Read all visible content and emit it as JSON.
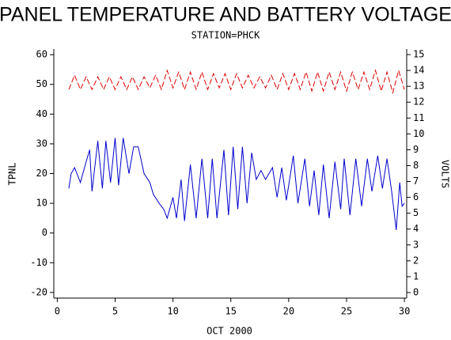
{
  "chart_data": {
    "type": "line",
    "title": "PANEL TEMPERATURE AND BATTERY VOLTAGE",
    "subtitle": "STATION=PHCK",
    "x_label": "OCT 2000",
    "y_label": "TPNL",
    "y2_label": "VOLTS",
    "xlim": [
      -0.3,
      30.2
    ],
    "xticks": [
      0,
      5,
      10,
      15,
      20,
      25,
      30
    ],
    "ylim": [
      -21.9,
      61.9
    ],
    "yticks": [
      -20,
      -10,
      0,
      10,
      20,
      30,
      40,
      50,
      60
    ],
    "y2lim": [
      -0.35,
      15.35
    ],
    "y2ticks": [
      0,
      1,
      2,
      3,
      4,
      5,
      6,
      7,
      8,
      9,
      10,
      11,
      12,
      13,
      14,
      15
    ],
    "series": [
      {
        "name": "TPNL",
        "color": "#0000cc",
        "dash": false,
        "x": [
          1.0,
          1.2,
          1.5,
          2.0,
          2.5,
          2.8,
          3.0,
          3.5,
          3.9,
          4.2,
          4.6,
          5.0,
          5.3,
          5.7,
          6.2,
          6.6,
          7.0,
          7.5,
          8.0,
          8.3,
          8.8,
          9.2,
          9.5,
          10.0,
          10.3,
          10.7,
          11.0,
          11.5,
          12.0,
          12.5,
          13.0,
          13.4,
          13.8,
          14.4,
          14.8,
          15.2,
          15.6,
          16.0,
          16.4,
          16.8,
          17.2,
          17.6,
          18.0,
          18.6,
          19.0,
          19.4,
          19.8,
          20.4,
          20.8,
          21.4,
          21.8,
          22.2,
          22.6,
          23.0,
          23.5,
          24.0,
          24.5,
          24.8,
          25.3,
          25.8,
          26.3,
          26.8,
          27.2,
          27.7,
          28.1,
          28.5,
          28.9,
          29.3,
          29.6,
          29.8,
          30.0
        ],
        "values": [
          15,
          20,
          22,
          17,
          24,
          28,
          14,
          31,
          15,
          31,
          17,
          32,
          16,
          32,
          20,
          29,
          29,
          20,
          17,
          13,
          10,
          8,
          5,
          12,
          5,
          18,
          4,
          23,
          5,
          25,
          5,
          25,
          5,
          28,
          6,
          29,
          8,
          29,
          10,
          27,
          18,
          21,
          18,
          22,
          12,
          22,
          11,
          26,
          10,
          25,
          9,
          21,
          6,
          23,
          5,
          24,
          8,
          25,
          6,
          25,
          9,
          25,
          14,
          26,
          15,
          25,
          14,
          1,
          17,
          9,
          10
        ]
      },
      {
        "name": "VOLTS",
        "color": "#dd0000",
        "dash": true,
        "axis": "y2",
        "x": [
          1.0,
          1.5,
          2.0,
          2.5,
          3.0,
          3.5,
          4.0,
          4.5,
          5.0,
          5.5,
          6.0,
          6.5,
          7.0,
          7.5,
          8.0,
          8.5,
          9.0,
          9.5,
          10.0,
          10.5,
          11.0,
          11.5,
          12.0,
          12.5,
          13.0,
          13.5,
          14.0,
          14.5,
          15.0,
          15.5,
          16.0,
          16.5,
          17.0,
          17.5,
          18.0,
          18.5,
          19.0,
          19.5,
          20.0,
          20.5,
          21.0,
          21.5,
          22.0,
          22.5,
          23.0,
          23.5,
          24.0,
          24.5,
          25.0,
          25.5,
          26.0,
          26.5,
          27.0,
          27.5,
          28.0,
          28.5,
          29.0,
          29.5,
          30.0
        ],
        "values": [
          12.8,
          13.7,
          12.8,
          13.6,
          12.8,
          13.6,
          12.8,
          13.6,
          12.8,
          13.6,
          12.8,
          13.6,
          12.8,
          13.6,
          12.9,
          13.7,
          12.8,
          14.0,
          12.9,
          13.9,
          12.8,
          13.9,
          12.8,
          13.9,
          12.8,
          13.8,
          12.9,
          13.8,
          12.8,
          13.8,
          12.9,
          13.7,
          12.9,
          13.6,
          12.9,
          13.7,
          12.8,
          13.8,
          12.8,
          13.8,
          12.8,
          13.9,
          12.7,
          13.9,
          12.7,
          13.9,
          12.8,
          13.9,
          12.7,
          13.9,
          12.8,
          13.9,
          12.8,
          14.0,
          12.7,
          13.9,
          12.6,
          14.0,
          12.8
        ]
      }
    ]
  }
}
